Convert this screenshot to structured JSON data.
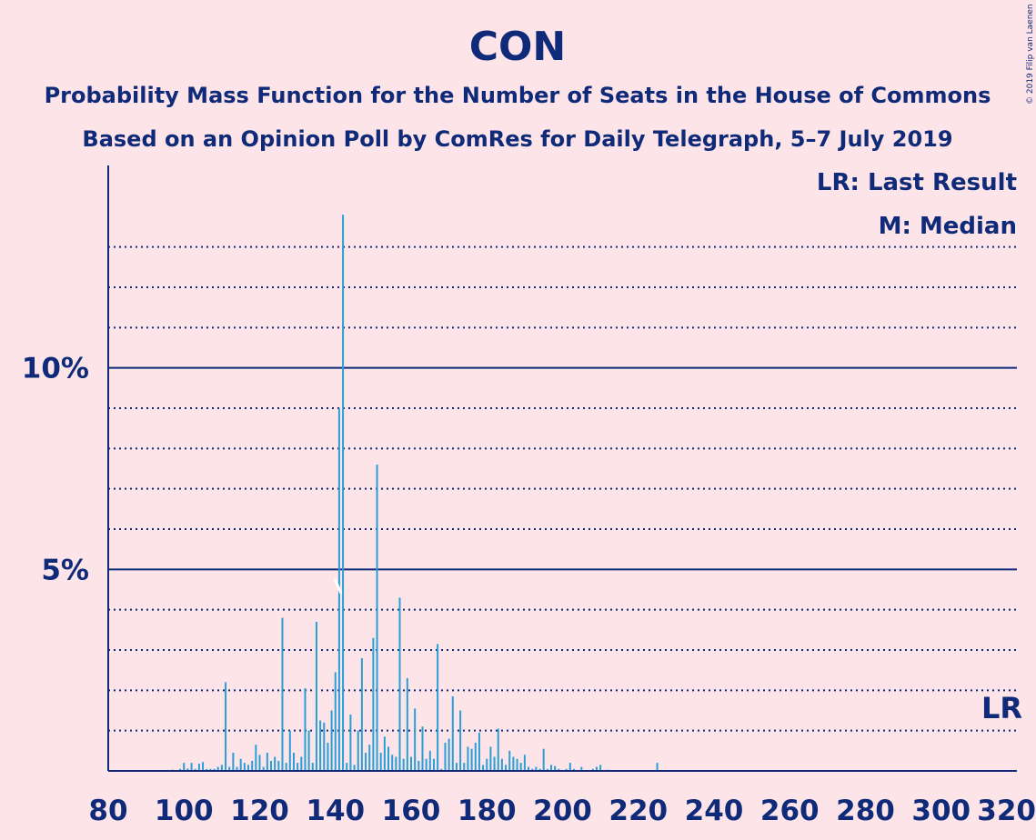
{
  "chart_data": {
    "type": "bar",
    "title": "CON",
    "subtitle1": "Probability Mass Function for the Number of Seats in the House of Commons",
    "subtitle2": "Based on an Opinion Poll by ComRes for Daily Telegraph, 5–7 July 2019",
    "credit": "© 2019 Filip van Laenen",
    "legend": [
      "LR: Last Result",
      "M: Median"
    ],
    "lr_label": "LR",
    "median_seat": 141,
    "last_result_seat": 317,
    "xlim": [
      80,
      320
    ],
    "ylim": [
      0,
      15
    ],
    "x_ticks": [
      80,
      100,
      120,
      140,
      160,
      180,
      200,
      220,
      240,
      260,
      280,
      300,
      320
    ],
    "y_ticks_labeled": [
      {
        "value": 5,
        "label": "5%"
      },
      {
        "value": 10,
        "label": "10%"
      }
    ],
    "grid": "dotted every 1%, solid at 5% and 10%",
    "x": [
      95,
      96,
      97,
      98,
      99,
      100,
      101,
      102,
      103,
      104,
      105,
      106,
      107,
      108,
      109,
      110,
      111,
      112,
      113,
      114,
      115,
      116,
      117,
      118,
      119,
      120,
      121,
      122,
      123,
      124,
      125,
      126,
      127,
      128,
      129,
      130,
      131,
      132,
      133,
      134,
      135,
      136,
      137,
      138,
      139,
      140,
      141,
      142,
      143,
      144,
      145,
      146,
      147,
      148,
      149,
      150,
      151,
      152,
      153,
      154,
      155,
      156,
      157,
      158,
      159,
      160,
      161,
      162,
      163,
      164,
      165,
      166,
      167,
      168,
      169,
      170,
      171,
      172,
      173,
      174,
      175,
      176,
      177,
      178,
      179,
      180,
      181,
      182,
      183,
      184,
      185,
      186,
      187,
      188,
      189,
      190,
      191,
      192,
      193,
      194,
      195,
      196,
      197,
      198,
      199,
      200,
      201,
      202,
      203,
      204,
      205,
      206,
      207,
      208,
      209,
      210,
      211,
      212,
      213,
      214,
      215,
      216,
      217,
      218,
      219,
      220,
      221,
      222,
      223,
      224,
      225
    ],
    "values": [
      0.02,
      0.01,
      0.03,
      0.02,
      0.05,
      0.2,
      0.06,
      0.2,
      0.05,
      0.18,
      0.22,
      0.05,
      0.05,
      0.05,
      0.1,
      0.15,
      2.2,
      0.1,
      0.45,
      0.1,
      0.3,
      0.2,
      0.15,
      0.25,
      0.65,
      0.4,
      0.1,
      0.45,
      0.25,
      0.35,
      0.25,
      3.8,
      0.2,
      1.0,
      0.45,
      0.2,
      0.35,
      2.05,
      1.0,
      0.2,
      3.7,
      1.25,
      1.2,
      0.7,
      1.5,
      2.45,
      9.0,
      13.8,
      0.2,
      1.4,
      0.15,
      1.0,
      2.8,
      0.45,
      0.65,
      3.3,
      7.6,
      0.45,
      0.85,
      0.6,
      0.4,
      0.35,
      4.3,
      0.3,
      2.3,
      0.35,
      1.55,
      0.25,
      1.1,
      0.3,
      0.5,
      0.3,
      3.15,
      0.05,
      0.7,
      0.8,
      1.85,
      0.2,
      1.5,
      0.2,
      0.6,
      0.55,
      0.7,
      0.95,
      0.15,
      0.3,
      0.6,
      0.35,
      1.05,
      0.3,
      0.15,
      0.5,
      0.35,
      0.3,
      0.2,
      0.4,
      0.1,
      0.05,
      0.1,
      0.05,
      0.55,
      0.05,
      0.15,
      0.12,
      0.05,
      0.02,
      0.05,
      0.2,
      0.05,
      0.02,
      0.1,
      0.02,
      0.02,
      0.05,
      0.1,
      0.15,
      0.02,
      0.03,
      0.02,
      0.02,
      0.02,
      0.02,
      0.02,
      0.01,
      0.01,
      0.01,
      0.01,
      0.01,
      0.01,
      0.01,
      0.2
    ]
  },
  "colors": {
    "background": "#fde4e8",
    "text": "#0e2a78",
    "bar": "#2a9fd6",
    "axis": "#0e2a78"
  }
}
